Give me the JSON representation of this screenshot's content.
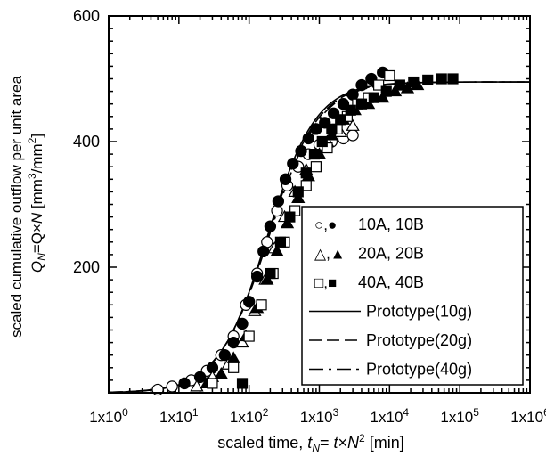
{
  "chart_data": {
    "type": "scatter",
    "title": "",
    "x_scale": "log",
    "xlim": [
      1,
      1000000
    ],
    "ylim": [
      0,
      600
    ],
    "x_ticks": [
      {
        "value": 1,
        "base": "1x10",
        "exp": "0"
      },
      {
        "value": 10,
        "base": "1x10",
        "exp": "1"
      },
      {
        "value": 100,
        "base": "1x10",
        "exp": "2"
      },
      {
        "value": 1000,
        "base": "1x10",
        "exp": "3"
      },
      {
        "value": 10000,
        "base": "1x10",
        "exp": "4"
      },
      {
        "value": 100000,
        "base": "1x10",
        "exp": "5"
      },
      {
        "value": 1000000,
        "base": "1x10",
        "exp": "6"
      }
    ],
    "y_ticks": [
      {
        "value": 200,
        "label": "200"
      },
      {
        "value": 400,
        "label": "400"
      },
      {
        "value": 600,
        "label": "600"
      }
    ],
    "xlabel": {
      "prefix": "scaled time, ",
      "t": "t",
      "sub": "N",
      "mid": "= ",
      "t2": "t",
      "times": "×",
      "n": "N",
      "sup": "2",
      "suffix": " [min]"
    },
    "ylabel_line1": "scaled cumulative outflow per unit area",
    "ylabel_line2": {
      "q": "Q",
      "sub": "N",
      "eq": "=Q×",
      "n": "N",
      "unit": " [mm",
      "sup1": "3",
      "mid": "/mm",
      "sup2": "2",
      "end": "]"
    },
    "legend_position": "lower-right",
    "legend": [
      {
        "symbols": "○,●",
        "label": "10A, 10B"
      },
      {
        "symbols": "△,▲",
        "label": "20A, 20B"
      },
      {
        "symbols": "□,■",
        "label": "40A, 40B"
      },
      {
        "line": "solid",
        "label": "Prototype(10g)"
      },
      {
        "line": "dashed",
        "label": "Prototype(20g)"
      },
      {
        "line": "dashdot",
        "label": "Prototype(40g)"
      }
    ],
    "series": [
      {
        "name": "10A",
        "marker": "circle",
        "filled": false,
        "color": "#000000",
        "x": [
          5,
          8,
          15,
          25,
          40,
          60,
          90,
          130,
          180,
          250,
          350,
          500,
          700,
          1000,
          1500,
          2200,
          3000
        ],
        "y": [
          5,
          10,
          20,
          35,
          60,
          90,
          140,
          190,
          240,
          290,
          330,
          360,
          380,
          395,
          400,
          405,
          410
        ]
      },
      {
        "name": "10B",
        "marker": "circle",
        "filled": true,
        "color": "#000000",
        "x": [
          12,
          20,
          30,
          45,
          60,
          80,
          100,
          130,
          160,
          200,
          260,
          330,
          420,
          550,
          700,
          900,
          1200,
          1600,
          2200,
          3000,
          4000,
          5500,
          8000
        ],
        "y": [
          15,
          25,
          40,
          60,
          80,
          110,
          145,
          185,
          225,
          265,
          305,
          340,
          365,
          385,
          405,
          420,
          430,
          445,
          460,
          475,
          490,
          500,
          510
        ]
      },
      {
        "name": "20A",
        "marker": "triangle",
        "filled": false,
        "color": "#000000",
        "x": [
          18,
          30,
          50,
          80,
          120,
          170,
          230,
          320,
          450,
          650,
          900,
          1300,
          2000,
          3000
        ],
        "y": [
          10,
          25,
          45,
          80,
          130,
          180,
          230,
          280,
          320,
          355,
          380,
          400,
          415,
          425
        ]
      },
      {
        "name": "20B",
        "marker": "triangle",
        "filled": true,
        "color": "#000000",
        "x": [
          25,
          40,
          60,
          90,
          130,
          180,
          250,
          350,
          500,
          700,
          1000,
          1500,
          2200,
          3200,
          5000,
          8000,
          12000,
          18000,
          25000
        ],
        "y": [
          15,
          30,
          55,
          90,
          135,
          180,
          225,
          270,
          310,
          345,
          380,
          410,
          435,
          450,
          460,
          470,
          480,
          485,
          490
        ]
      },
      {
        "name": "40A",
        "marker": "square",
        "filled": false,
        "color": "#000000",
        "x": [
          30,
          60,
          100,
          150,
          220,
          320,
          450,
          650,
          900,
          1300,
          1800,
          2500,
          3500,
          5000,
          7000,
          10000
        ],
        "y": [
          15,
          40,
          90,
          140,
          190,
          240,
          290,
          330,
          360,
          390,
          420,
          440,
          460,
          470,
          490,
          505
        ]
      },
      {
        "name": "40B",
        "marker": "square",
        "filled": true,
        "color": "#000000",
        "x": [
          80,
          200,
          280,
          380,
          500,
          650,
          850,
          1100,
          1500,
          2000,
          2800,
          4000,
          6000,
          9000,
          14000,
          22000,
          35000,
          55000,
          80000
        ],
        "y": [
          15,
          190,
          240,
          280,
          320,
          350,
          380,
          400,
          420,
          435,
          450,
          460,
          470,
          480,
          490,
          495,
          498,
          500,
          500
        ]
      }
    ],
    "curves": [
      {
        "name": "Prototype(10g)",
        "style": "solid",
        "params": {
          "y_max": 495,
          "t_half": 180,
          "n": 1.25
        }
      },
      {
        "name": "Prototype(20g)",
        "style": "dashed",
        "params": {
          "y_max": 495,
          "t_half": 185,
          "n": 1.22
        }
      },
      {
        "name": "Prototype(40g)",
        "style": "dashdot",
        "params": {
          "y_max": 495,
          "t_half": 190,
          "n": 1.2
        }
      }
    ],
    "grid": false
  }
}
